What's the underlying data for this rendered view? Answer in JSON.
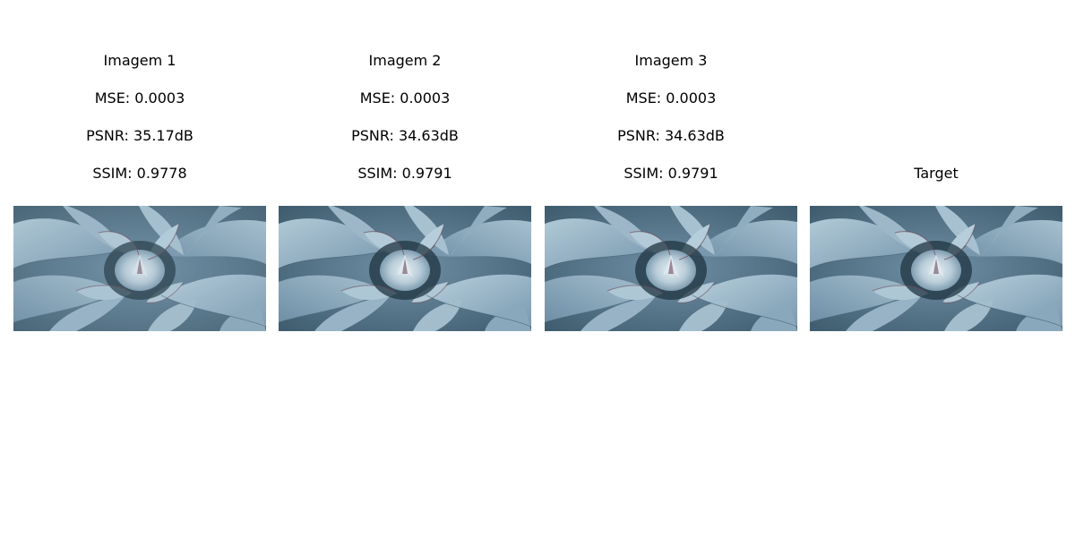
{
  "panels": [
    {
      "title_lines": [
        "Imagem 1",
        "MSE: 0.0003",
        "PSNR: 35.17dB",
        "SSIM: 0.9778"
      ],
      "image": "agave-succulent-photo",
      "variant": "soft"
    },
    {
      "title_lines": [
        "Imagem 2",
        "MSE: 0.0003",
        "PSNR: 34.63dB",
        "SSIM: 0.9791"
      ],
      "image": "agave-succulent-photo",
      "variant": "normal"
    },
    {
      "title_lines": [
        "Imagem 3",
        "MSE: 0.0003",
        "PSNR: 34.63dB",
        "SSIM: 0.9791"
      ],
      "image": "agave-succulent-photo",
      "variant": "normal"
    },
    {
      "title_lines": [
        "Target"
      ],
      "image": "agave-succulent-photo",
      "variant": "sharp"
    }
  ],
  "colors": {
    "leaf_light": "#a9c3d2",
    "leaf_mid": "#7f9fb5",
    "leaf_dark": "#4f6f84",
    "shadow": "#1f3440",
    "center": "#d9e4ea",
    "spine": "#6b4a5a"
  }
}
